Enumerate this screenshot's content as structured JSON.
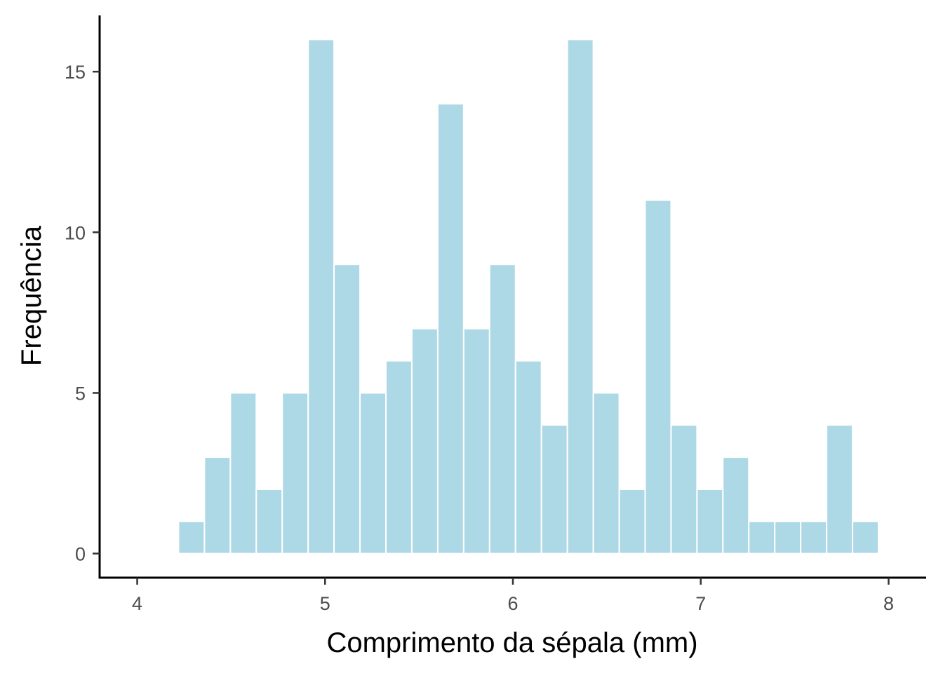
{
  "chart_data": {
    "type": "bar",
    "title": "",
    "xlabel": "Comprimento da sépala (mm)",
    "ylabel": "Frequência",
    "xlim": [
      3.8,
      8.2
    ],
    "ylim": [
      -0.75,
      16.75
    ],
    "bin_width": 0.138,
    "bins": [
      {
        "start": 4.22,
        "end": 4.358,
        "count": 1
      },
      {
        "start": 4.358,
        "end": 4.496,
        "count": 3
      },
      {
        "start": 4.496,
        "end": 4.634,
        "count": 5
      },
      {
        "start": 4.634,
        "end": 4.772,
        "count": 2
      },
      {
        "start": 4.772,
        "end": 4.91,
        "count": 5
      },
      {
        "start": 4.91,
        "end": 5.048,
        "count": 16
      },
      {
        "start": 5.048,
        "end": 5.186,
        "count": 9
      },
      {
        "start": 5.186,
        "end": 5.324,
        "count": 5
      },
      {
        "start": 5.324,
        "end": 5.462,
        "count": 6
      },
      {
        "start": 5.462,
        "end": 5.6,
        "count": 7
      },
      {
        "start": 5.6,
        "end": 5.738,
        "count": 14
      },
      {
        "start": 5.738,
        "end": 5.876,
        "count": 7
      },
      {
        "start": 5.876,
        "end": 6.014,
        "count": 9
      },
      {
        "start": 6.014,
        "end": 6.152,
        "count": 6
      },
      {
        "start": 6.152,
        "end": 6.29,
        "count": 4
      },
      {
        "start": 6.29,
        "end": 6.428,
        "count": 16
      },
      {
        "start": 6.428,
        "end": 6.566,
        "count": 5
      },
      {
        "start": 6.566,
        "end": 6.704,
        "count": 2
      },
      {
        "start": 6.704,
        "end": 6.842,
        "count": 11
      },
      {
        "start": 6.842,
        "end": 6.98,
        "count": 4
      },
      {
        "start": 6.98,
        "end": 7.118,
        "count": 2
      },
      {
        "start": 7.118,
        "end": 7.256,
        "count": 3
      },
      {
        "start": 7.256,
        "end": 7.394,
        "count": 1
      },
      {
        "start": 7.394,
        "end": 7.532,
        "count": 1
      },
      {
        "start": 7.532,
        "end": 7.67,
        "count": 1
      },
      {
        "start": 7.67,
        "end": 7.808,
        "count": 4
      },
      {
        "start": 7.808,
        "end": 7.946,
        "count": 1
      }
    ],
    "x_ticks": [
      {
        "value": 4,
        "label": "4"
      },
      {
        "value": 5,
        "label": "5"
      },
      {
        "value": 6,
        "label": "6"
      },
      {
        "value": 7,
        "label": "7"
      },
      {
        "value": 8,
        "label": "8"
      }
    ],
    "y_ticks": [
      {
        "value": 0,
        "label": "0"
      },
      {
        "value": 5,
        "label": "5"
      },
      {
        "value": 10,
        "label": "10"
      },
      {
        "value": 15,
        "label": "15"
      }
    ],
    "grid": false,
    "legend": "none",
    "colors": {
      "bar_fill": "#add8e6",
      "bar_outline": "#ffffff",
      "axis_line": "#000000",
      "tick_text": "#4d4d4d"
    }
  }
}
